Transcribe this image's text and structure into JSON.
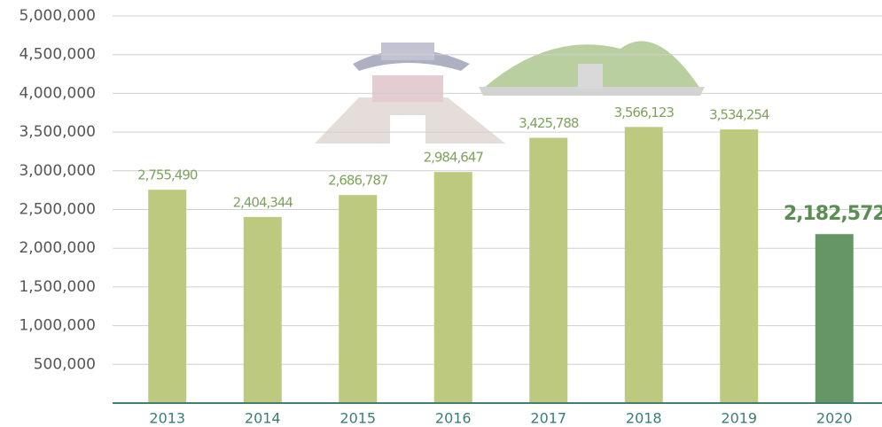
{
  "chart_data": {
    "type": "bar",
    "categories": [
      "2013",
      "2014",
      "2015",
      "2016",
      "2017",
      "2018",
      "2019",
      "2020"
    ],
    "values": [
      2755490,
      2404344,
      2686787,
      2984647,
      3425788,
      3566123,
      3534254,
      2182572
    ],
    "value_labels": [
      "2,755,490",
      "2,404,344",
      "2,686,787",
      "2,984,647",
      "3,425,788",
      "3,566,123",
      "3,534,254",
      "2,182,572"
    ],
    "colors": [
      "#bcc97e",
      "#bcc97e",
      "#bcc97e",
      "#bcc97e",
      "#bcc97e",
      "#bcc97e",
      "#bcc97e",
      "#669566"
    ],
    "ylim": [
      0,
      5000000
    ],
    "yticks": [
      {
        "value": 500000,
        "label": "500,000"
      },
      {
        "value": 1000000,
        "label": "1,000,000"
      },
      {
        "value": 1500000,
        "label": "1,500,000"
      },
      {
        "value": 2000000,
        "label": "2,000,000"
      },
      {
        "value": 2500000,
        "label": "2,500,000"
      },
      {
        "value": 3000000,
        "label": "3,000,000"
      },
      {
        "value": 3500000,
        "label": "3,500,000"
      },
      {
        "value": 4000000,
        "label": "4,000,000"
      },
      {
        "value": 4500000,
        "label": "4,500,000"
      },
      {
        "value": 5000000,
        "label": "5,000,000"
      }
    ],
    "grid": true
  }
}
